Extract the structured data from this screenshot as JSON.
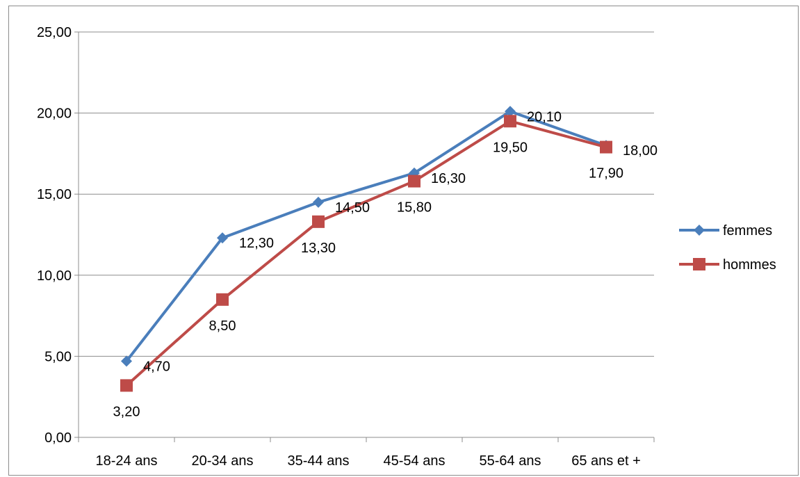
{
  "chart_data": {
    "type": "line",
    "categories": [
      "18-24 ans",
      "20-34 ans",
      "35-44 ans",
      "45-54 ans",
      "55-64 ans",
      "65 ans et +"
    ],
    "y_ticks": [
      "0,00",
      "5,00",
      "10,00",
      "15,00",
      "20,00",
      "25,00"
    ],
    "ylim": [
      0,
      25
    ],
    "grid": true,
    "legend_position": "right",
    "series": [
      {
        "name": "femmes",
        "color": "#4a7ebb",
        "marker": "diamond",
        "values": [
          4.7,
          12.3,
          14.5,
          16.3,
          20.1,
          18.0
        ],
        "labels": [
          "4,70",
          "12,30",
          "14,50",
          "16,30",
          "20,10",
          "18,00"
        ]
      },
      {
        "name": "hommes",
        "color": "#be4b48",
        "marker": "square",
        "values": [
          3.2,
          8.5,
          13.3,
          15.8,
          19.5,
          17.9
        ],
        "labels": [
          "3,20",
          "8,50",
          "13,30",
          "15,80",
          "19,50",
          "17,90"
        ]
      }
    ]
  }
}
